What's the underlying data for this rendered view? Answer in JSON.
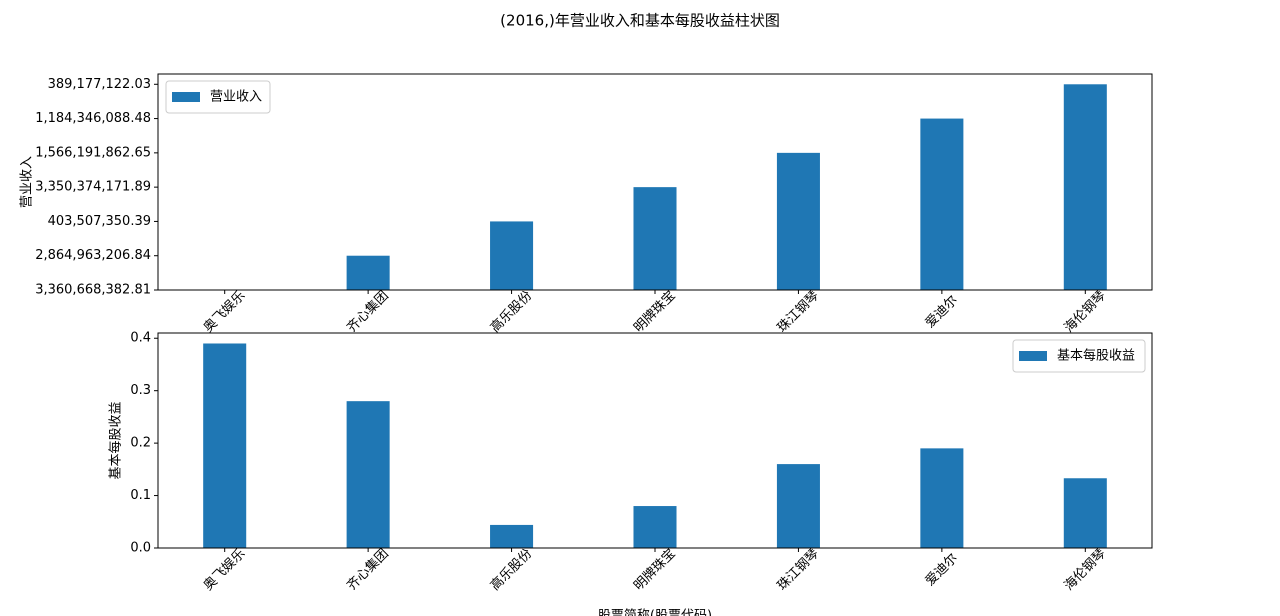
{
  "title": "(2016,)年营业收入和基本每股收益柱状图",
  "chart_data": [
    {
      "type": "bar",
      "ylabel": "营业收入",
      "categories": [
        "奥飞娱乐",
        "齐心集团",
        "高乐股份",
        "明牌珠宝",
        "珠江钢琴",
        "爱迪尔",
        "海伦钢琴"
      ],
      "series": [
        {
          "name": "营业收入",
          "color": "#1f77b4",
          "values": [
            0,
            1,
            2,
            3,
            4,
            5,
            6
          ]
        }
      ],
      "ylim": [
        0,
        6.3
      ],
      "yticks": [
        {
          "value": 0,
          "label": "3,360,668,382.81"
        },
        {
          "value": 1,
          "label": "2,864,963,206.84"
        },
        {
          "value": 2,
          "label": "403,507,350.39"
        },
        {
          "value": 3,
          "label": "3,350,374,171.89"
        },
        {
          "value": 4,
          "label": "1,566,191,862.65"
        },
        {
          "value": 5,
          "label": "1,184,346,088.48"
        },
        {
          "value": 6,
          "label": "389,177,122.03"
        }
      ],
      "legend": "upper left"
    },
    {
      "type": "bar",
      "ylabel": "基本每股收益",
      "xlabel": "股票简称(股票代码)",
      "categories": [
        "奥飞娱乐",
        "齐心集团",
        "高乐股份",
        "明牌珠宝",
        "珠江钢琴",
        "爱迪尔",
        "海伦钢琴"
      ],
      "series": [
        {
          "name": "基本每股收益",
          "color": "#1f77b4",
          "values": [
            0.39,
            0.28,
            0.044,
            0.08,
            0.16,
            0.19,
            0.133
          ]
        }
      ],
      "ylim": [
        0,
        0.41
      ],
      "yticks": [
        {
          "value": 0,
          "label": "0.0"
        },
        0.1,
        0.2,
        0.3,
        0.4
      ],
      "legend": "upper right"
    }
  ]
}
